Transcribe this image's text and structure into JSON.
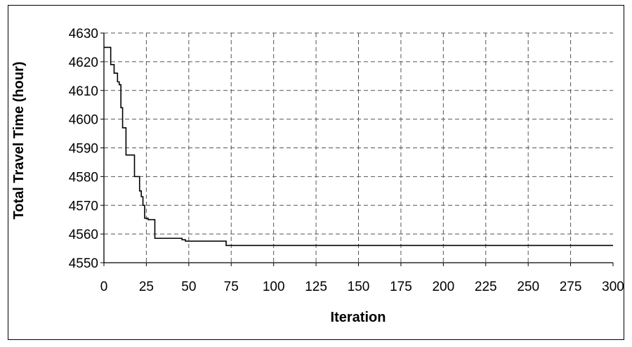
{
  "chart_data": {
    "type": "line",
    "title": "",
    "xlabel": "Iteration",
    "ylabel": "Total Travel Time (hour)",
    "xlim": [
      0,
      300
    ],
    "ylim": [
      4550,
      4630
    ],
    "x_ticks": [
      0,
      25,
      50,
      75,
      100,
      125,
      150,
      175,
      200,
      225,
      250,
      275,
      300
    ],
    "y_ticks": [
      4550,
      4560,
      4570,
      4580,
      4590,
      4600,
      4610,
      4620,
      4630
    ],
    "grid": true,
    "legend": "none",
    "series": [
      {
        "step": true,
        "x": [
          0,
          4,
          6,
          8,
          9,
          10,
          11,
          13,
          18,
          21,
          22,
          23,
          24,
          26,
          30,
          46,
          48,
          70,
          72,
          300
        ],
        "y": [
          4625,
          4619,
          4616,
          4613,
          4612,
          4604,
          4597,
          4587.5,
          4580,
          4575,
          4573,
          4570,
          4565.5,
          4565,
          4558.5,
          4558,
          4557.5,
          4557.5,
          4556,
          4556
        ]
      }
    ],
    "colors": {
      "line": "#000000",
      "grid": "#555555",
      "frame": "#000000"
    }
  }
}
